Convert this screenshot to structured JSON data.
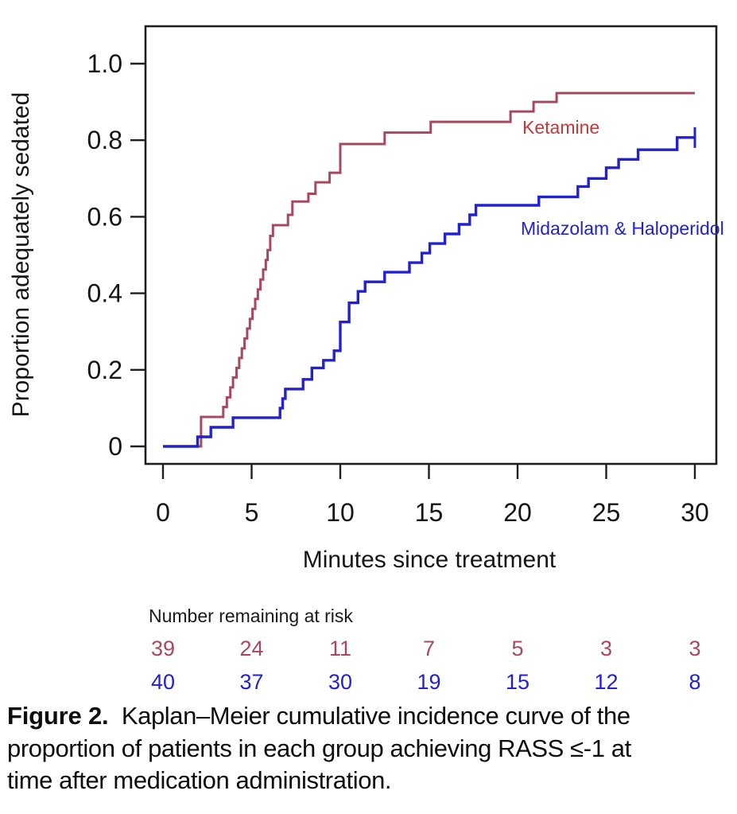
{
  "figure": {
    "caption_label": "Figure 2.",
    "caption_lines": [
      "Kaplan–Meier cumulative incidence curve of the",
      "proportion of patients in each group achieving RASS ≤-1 at",
      "time after medication administration."
    ]
  },
  "chart_data": {
    "type": "line",
    "subtype": "kaplan-meier-step",
    "title": "",
    "xlabel": "Minutes since treatment",
    "ylabel": "Proportion adequately sedated",
    "xlim": [
      0,
      30
    ],
    "ylim": [
      0,
      1.0
    ],
    "x_ticks": [
      0,
      5,
      10,
      15,
      20,
      25,
      30
    ],
    "y_ticks": [
      0,
      0.2,
      0.4,
      0.6,
      0.8,
      1.0
    ],
    "y_tick_labels": [
      "0",
      "0.2",
      "0.4",
      "0.6",
      "0.8",
      "1.0"
    ],
    "grid": false,
    "legend_position": "inline-labels",
    "series": [
      {
        "name": "Ketamine",
        "color": "#a8485f",
        "label_color": "#c23939",
        "label_anchor": {
          "x": 657,
          "y": 168
        },
        "end_time": 30,
        "censor_at_end": false,
        "steps": [
          [
            0,
            0
          ],
          [
            2.15,
            0.077
          ],
          [
            3.4,
            0.103
          ],
          [
            3.6,
            0.128
          ],
          [
            3.8,
            0.154
          ],
          [
            3.95,
            0.18
          ],
          [
            4.15,
            0.205
          ],
          [
            4.3,
            0.231
          ],
          [
            4.45,
            0.256
          ],
          [
            4.6,
            0.282
          ],
          [
            4.75,
            0.308
          ],
          [
            4.9,
            0.333
          ],
          [
            5.05,
            0.359
          ],
          [
            5.2,
            0.385
          ],
          [
            5.35,
            0.41
          ],
          [
            5.5,
            0.436
          ],
          [
            5.65,
            0.462
          ],
          [
            5.8,
            0.487
          ],
          [
            5.9,
            0.513
          ],
          [
            6.05,
            0.55
          ],
          [
            6.2,
            0.578
          ],
          [
            7.05,
            0.605
          ],
          [
            7.3,
            0.64
          ],
          [
            8.2,
            0.66
          ],
          [
            8.6,
            0.69
          ],
          [
            9.4,
            0.715
          ],
          [
            10,
            0.79
          ],
          [
            12.5,
            0.82
          ],
          [
            15.1,
            0.848
          ],
          [
            19.6,
            0.875
          ],
          [
            20.9,
            0.9
          ],
          [
            22.2,
            0.923
          ]
        ]
      },
      {
        "name": "Midazolam & Haloperidol",
        "color": "#2121d1",
        "label_color": "#2121d1",
        "label_anchor": {
          "x": 655,
          "y": 295
        },
        "end_time": 30,
        "censor_at_end": true,
        "steps": [
          [
            0,
            0
          ],
          [
            1.95,
            0.025
          ],
          [
            2.7,
            0.05
          ],
          [
            3.95,
            0.075
          ],
          [
            6.6,
            0.1
          ],
          [
            6.75,
            0.125
          ],
          [
            6.9,
            0.15
          ],
          [
            7.9,
            0.175
          ],
          [
            8.4,
            0.205
          ],
          [
            9.05,
            0.225
          ],
          [
            9.65,
            0.25
          ],
          [
            10,
            0.325
          ],
          [
            10.5,
            0.375
          ],
          [
            11,
            0.405
          ],
          [
            11.4,
            0.43
          ],
          [
            12.5,
            0.455
          ],
          [
            13.9,
            0.48
          ],
          [
            14.6,
            0.505
          ],
          [
            15.05,
            0.53
          ],
          [
            15.9,
            0.555
          ],
          [
            16.7,
            0.58
          ],
          [
            17.3,
            0.605
          ],
          [
            17.65,
            0.63
          ],
          [
            21.2,
            0.652
          ],
          [
            23.4,
            0.679
          ],
          [
            24,
            0.7
          ],
          [
            25,
            0.728
          ],
          [
            25.7,
            0.75
          ],
          [
            26.8,
            0.775
          ],
          [
            29,
            0.807
          ]
        ]
      }
    ]
  },
  "risk_table": {
    "title": "Number remaining at risk",
    "times": [
      0,
      5,
      10,
      15,
      20,
      25,
      30
    ],
    "rows": [
      {
        "name": "Ketamine",
        "color": "#a8485f",
        "values": [
          39,
          24,
          11,
          7,
          5,
          3,
          3
        ]
      },
      {
        "name": "Midazolam & Haloperidol",
        "color": "#2121d1",
        "values": [
          40,
          37,
          30,
          19,
          15,
          12,
          8
        ]
      }
    ]
  }
}
